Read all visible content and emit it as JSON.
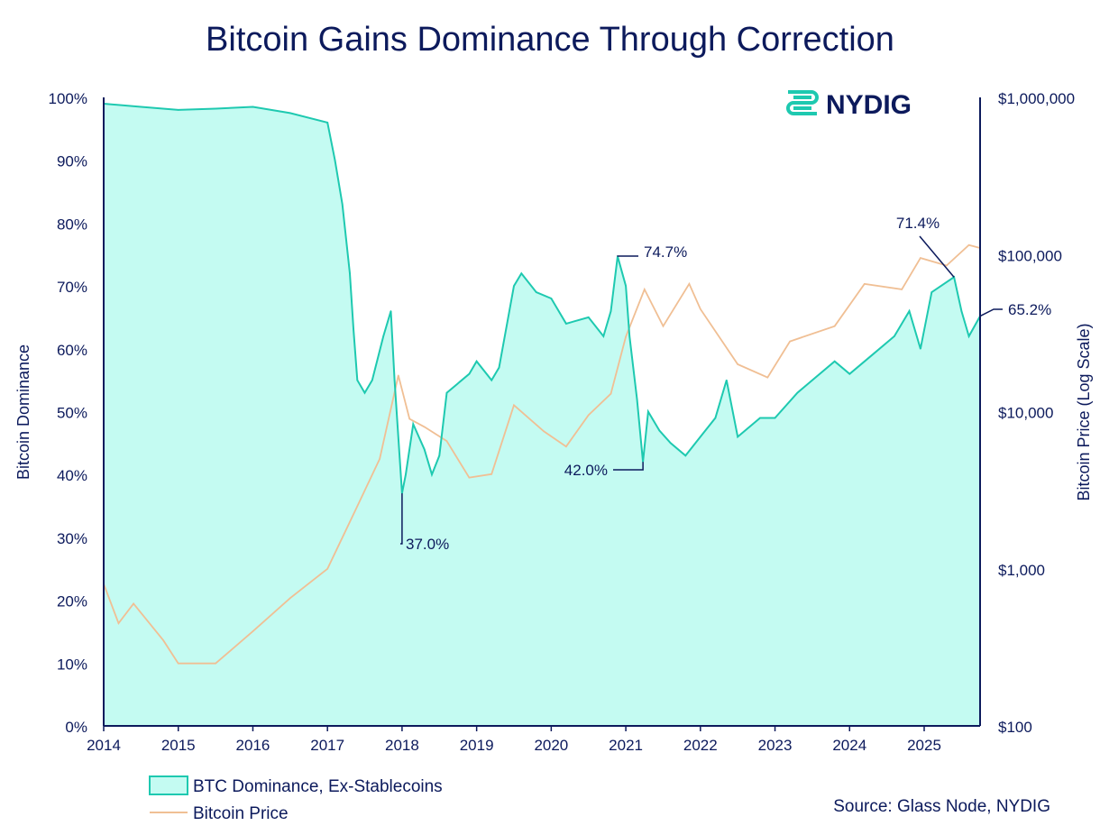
{
  "chart_data": {
    "type": "area",
    "title": "Bitcoin Gains Dominance Through Correction",
    "logo_text": "NYDIG",
    "source": "Source: Glass Node, NYDIG",
    "xlabel": "",
    "ylabel_left": "Bitcoin Dominance",
    "ylabel_right": "Bitcoin Price (Log Scale)",
    "xlim": [
      2014,
      2025.75
    ],
    "ylim_left": [
      0,
      100
    ],
    "ylim_right": [
      100,
      1000000
    ],
    "right_scale": "log",
    "grid": false,
    "legend_placement": "bottom-left",
    "x_ticks": [
      "2014",
      "2015",
      "2016",
      "2017",
      "2018",
      "2019",
      "2020",
      "2021",
      "2022",
      "2023",
      "2024",
      "2025"
    ],
    "y_left_ticks": [
      "0%",
      "10%",
      "20%",
      "30%",
      "40%",
      "50%",
      "60%",
      "70%",
      "80%",
      "90%",
      "100%"
    ],
    "y_right_ticks": [
      "$100",
      "$1,000",
      "$10,000",
      "$100,000",
      "$1,000,000"
    ],
    "colors": {
      "dominance_line": "#1ec9b0",
      "dominance_fill": "#c4fbf2",
      "price": "#f0bf94",
      "axis": "#0c1a5c",
      "title": "#0c1a5c"
    },
    "series": [
      {
        "name": "BTC Dominance, Ex-Stablecoins",
        "axis": "left",
        "style": "area",
        "x": [
          2014.0,
          2014.5,
          2015.0,
          2015.5,
          2016.0,
          2016.5,
          2017.0,
          2017.1,
          2017.2,
          2017.3,
          2017.35,
          2017.4,
          2017.5,
          2017.6,
          2017.75,
          2017.85,
          2017.9,
          2018.0,
          2018.05,
          2018.15,
          2018.3,
          2018.4,
          2018.5,
          2018.6,
          2018.9,
          2019.0,
          2019.2,
          2019.3,
          2019.5,
          2019.6,
          2019.8,
          2020.0,
          2020.2,
          2020.5,
          2020.7,
          2020.8,
          2020.89,
          2021.0,
          2021.05,
          2021.15,
          2021.23,
          2021.3,
          2021.45,
          2021.6,
          2021.8,
          2022.0,
          2022.2,
          2022.35,
          2022.5,
          2022.8,
          2023.0,
          2023.3,
          2023.5,
          2023.8,
          2024.0,
          2024.3,
          2024.6,
          2024.8,
          2024.95,
          2025.1,
          2025.4,
          2025.5,
          2025.6,
          2025.75
        ],
        "values": [
          99,
          98.5,
          98,
          98.2,
          98.5,
          97.5,
          96,
          90,
          83,
          72,
          63,
          55,
          53,
          55,
          62,
          66,
          55,
          37,
          40,
          48,
          44,
          40,
          43,
          53,
          56,
          58,
          55,
          57,
          70,
          72,
          69,
          68,
          64,
          65,
          62,
          66,
          74.7,
          70,
          62,
          52,
          42.0,
          50,
          47,
          45,
          43,
          46,
          49,
          55,
          46,
          49,
          49,
          53,
          55,
          58,
          56,
          59,
          62,
          66,
          60,
          69,
          71.4,
          66,
          62,
          65.2
        ]
      },
      {
        "name": "Bitcoin Price",
        "axis": "right",
        "style": "line",
        "x": [
          2014.0,
          2014.2,
          2014.4,
          2014.8,
          2015.0,
          2015.5,
          2016.0,
          2016.5,
          2017.0,
          2017.4,
          2017.7,
          2017.95,
          2018.1,
          2018.3,
          2018.6,
          2018.9,
          2019.2,
          2019.5,
          2019.9,
          2020.2,
          2020.5,
          2020.8,
          2021.0,
          2021.25,
          2021.5,
          2021.85,
          2022.0,
          2022.5,
          2022.9,
          2023.2,
          2023.8,
          2024.2,
          2024.7,
          2024.95,
          2025.3,
          2025.6,
          2025.75
        ],
        "values": [
          800,
          450,
          600,
          350,
          250,
          250,
          400,
          650,
          1000,
          2500,
          5000,
          17000,
          9000,
          8000,
          6500,
          3800,
          4000,
          11000,
          7500,
          6000,
          9500,
          13000,
          30000,
          60000,
          35000,
          65000,
          45000,
          20000,
          16500,
          28000,
          35000,
          65000,
          60000,
          95000,
          85000,
          115000,
          110000
        ]
      }
    ],
    "annotations": [
      {
        "text": "37.0%",
        "x": 2018.0,
        "y": 37.0
      },
      {
        "text": "74.7%",
        "x": 2020.89,
        "y": 74.7
      },
      {
        "text": "42.0%",
        "x": 2021.23,
        "y": 42.0
      },
      {
        "text": "71.4%",
        "x": 2025.4,
        "y": 71.4
      },
      {
        "text": "65.2%",
        "x": 2025.75,
        "y": 65.2
      }
    ]
  }
}
